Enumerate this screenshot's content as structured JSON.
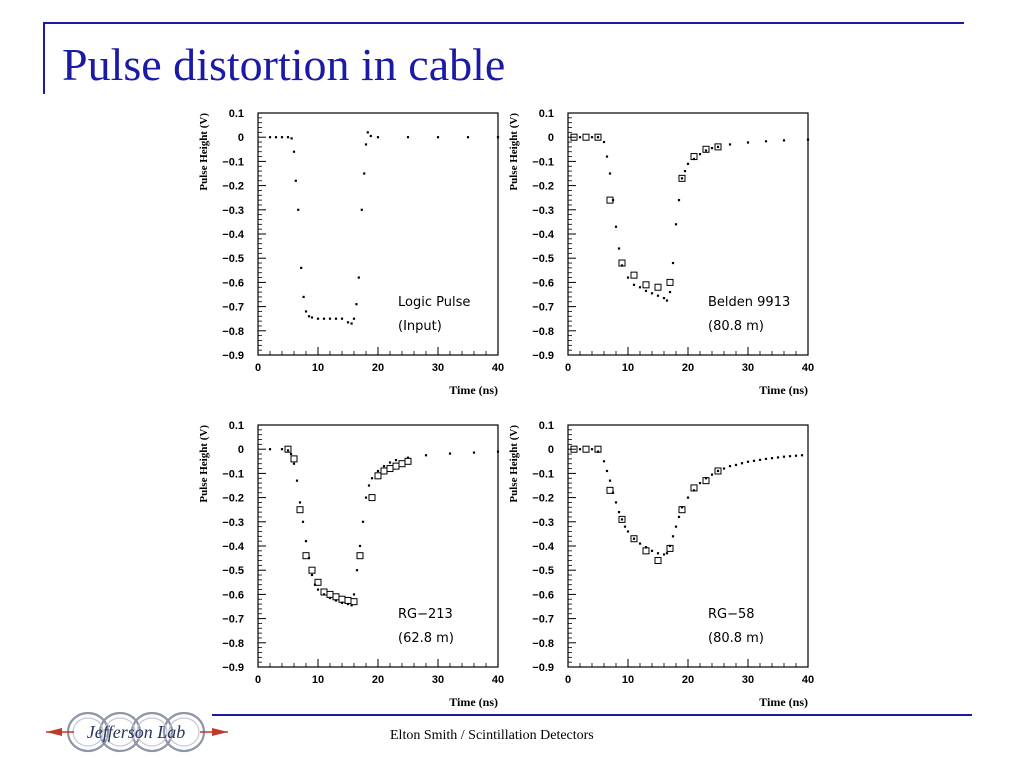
{
  "slide": {
    "title": "Pulse distortion in cable",
    "footer": "Elton Smith / Scintillation Detectors",
    "logo_text": "Jefferson Lab",
    "accent_color": "#1a1aa6"
  },
  "chart_data": [
    {
      "type": "scatter",
      "xlabel": "Time (ns)",
      "ylabel": "Pulse Height (V)",
      "xlim": [
        0,
        40
      ],
      "ylim": [
        -0.9,
        0.1
      ],
      "xticks": [
        "0",
        "10",
        "20",
        "30",
        "40"
      ],
      "yticks": [
        "0.1",
        "0",
        "-0.1",
        "-0.2",
        "-0.3",
        "-0.4",
        "-0.5",
        "-0.6",
        "-0.7",
        "-0.8",
        "-0.9"
      ],
      "annotation": [
        "Logic Pulse",
        "(Input)"
      ],
      "series": [
        {
          "marker": "dot",
          "points": [
            [
              2,
              0
            ],
            [
              3,
              0
            ],
            [
              4,
              0
            ],
            [
              5,
              0
            ],
            [
              5.6,
              -0.005
            ],
            [
              6,
              -0.06
            ],
            [
              6.3,
              -0.18
            ],
            [
              6.7,
              -0.3
            ],
            [
              7.2,
              -0.54
            ],
            [
              7.6,
              -0.66
            ],
            [
              8,
              -0.72
            ],
            [
              8.5,
              -0.74
            ],
            [
              9,
              -0.745
            ],
            [
              10,
              -0.75
            ],
            [
              11,
              -0.75
            ],
            [
              12,
              -0.75
            ],
            [
              13,
              -0.75
            ],
            [
              14,
              -0.75
            ],
            [
              15,
              -0.765
            ],
            [
              15.6,
              -0.77
            ],
            [
              16,
              -0.75
            ],
            [
              16.4,
              -0.69
            ],
            [
              16.8,
              -0.58
            ],
            [
              17.3,
              -0.3
            ],
            [
              17.7,
              -0.15
            ],
            [
              18,
              -0.03
            ],
            [
              18.3,
              0.02
            ],
            [
              18.8,
              0.005
            ],
            [
              20,
              0
            ],
            [
              25,
              0
            ],
            [
              30,
              0
            ],
            [
              35,
              0
            ],
            [
              40,
              0
            ]
          ]
        }
      ]
    },
    {
      "type": "scatter",
      "xlabel": "Time (ns)",
      "ylabel": "Pulse Height (V)",
      "xlim": [
        0,
        40
      ],
      "ylim": [
        -0.9,
        0.1
      ],
      "xticks": [
        "0",
        "10",
        "20",
        "30",
        "40"
      ],
      "yticks": [
        "0.1",
        "0",
        "-0.1",
        "-0.2",
        "-0.3",
        "-0.4",
        "-0.5",
        "-0.6",
        "-0.7",
        "-0.8",
        "-0.9"
      ],
      "annotation": [
        "Belden 9913",
        "(80.8 m)"
      ],
      "series": [
        {
          "marker": "dot",
          "points": [
            [
              2,
              0
            ],
            [
              4,
              0
            ],
            [
              5,
              0
            ],
            [
              6,
              -0.02
            ],
            [
              6.5,
              -0.08
            ],
            [
              7,
              -0.15
            ],
            [
              7.5,
              -0.26
            ],
            [
              8,
              -0.37
            ],
            [
              8.5,
              -0.46
            ],
            [
              9,
              -0.53
            ],
            [
              10,
              -0.58
            ],
            [
              11,
              -0.61
            ],
            [
              12,
              -0.62
            ],
            [
              13,
              -0.635
            ],
            [
              14,
              -0.645
            ],
            [
              15,
              -0.655
            ],
            [
              16,
              -0.665
            ],
            [
              16.5,
              -0.675
            ],
            [
              17,
              -0.64
            ],
            [
              17.5,
              -0.52
            ],
            [
              18,
              -0.36
            ],
            [
              18.5,
              -0.26
            ],
            [
              19,
              -0.17
            ],
            [
              19.5,
              -0.14
            ],
            [
              20,
              -0.11
            ],
            [
              21,
              -0.09
            ],
            [
              22,
              -0.07
            ],
            [
              23,
              -0.055
            ],
            [
              24,
              -0.045
            ],
            [
              25,
              -0.04
            ],
            [
              27,
              -0.03
            ],
            [
              30,
              -0.022
            ],
            [
              33,
              -0.017
            ],
            [
              36,
              -0.013
            ],
            [
              40,
              -0.01
            ]
          ]
        },
        {
          "marker": "square",
          "points": [
            [
              1,
              0
            ],
            [
              3,
              0
            ],
            [
              5,
              0
            ],
            [
              7,
              -0.26
            ],
            [
              9,
              -0.52
            ],
            [
              11,
              -0.57
            ],
            [
              13,
              -0.61
            ],
            [
              15,
              -0.62
            ],
            [
              17,
              -0.6
            ],
            [
              19,
              -0.17
            ],
            [
              21,
              -0.08
            ],
            [
              23,
              -0.05
            ],
            [
              25,
              -0.04
            ]
          ]
        }
      ]
    },
    {
      "type": "scatter",
      "xlabel": "Time (ns)",
      "ylabel": "Pulse Height (V)",
      "xlim": [
        0,
        40
      ],
      "ylim": [
        -0.9,
        0.1
      ],
      "xticks": [
        "0",
        "10",
        "20",
        "30",
        "40"
      ],
      "yticks": [
        "0.1",
        "0",
        "-0.1",
        "-0.2",
        "-0.3",
        "-0.4",
        "-0.5",
        "-0.6",
        "-0.7",
        "-0.8",
        "-0.9"
      ],
      "annotation": [
        "RG−213",
        "(62.8 m)"
      ],
      "series": [
        {
          "marker": "dot",
          "points": [
            [
              2,
              0
            ],
            [
              4,
              0
            ],
            [
              5,
              -0.005
            ],
            [
              5.5,
              -0.02
            ],
            [
              6,
              -0.06
            ],
            [
              6.5,
              -0.13
            ],
            [
              7,
              -0.22
            ],
            [
              7.5,
              -0.3
            ],
            [
              8,
              -0.38
            ],
            [
              8.5,
              -0.45
            ],
            [
              9,
              -0.52
            ],
            [
              9.5,
              -0.56
            ],
            [
              10,
              -0.58
            ],
            [
              11,
              -0.6
            ],
            [
              12,
              -0.615
            ],
            [
              13,
              -0.625
            ],
            [
              14,
              -0.635
            ],
            [
              15,
              -0.64
            ],
            [
              15.6,
              -0.645
            ],
            [
              16,
              -0.6
            ],
            [
              16.5,
              -0.5
            ],
            [
              17,
              -0.4
            ],
            [
              17.5,
              -0.3
            ],
            [
              18,
              -0.2
            ],
            [
              18.5,
              -0.15
            ],
            [
              19,
              -0.12
            ],
            [
              20,
              -0.09
            ],
            [
              21,
              -0.07
            ],
            [
              22,
              -0.055
            ],
            [
              23,
              -0.045
            ],
            [
              25,
              -0.035
            ],
            [
              28,
              -0.025
            ],
            [
              32,
              -0.018
            ],
            [
              36,
              -0.014
            ],
            [
              40,
              -0.01
            ]
          ]
        },
        {
          "marker": "square",
          "points": [
            [
              5,
              0
            ],
            [
              6,
              -0.04
            ],
            [
              7,
              -0.25
            ],
            [
              8,
              -0.44
            ],
            [
              9,
              -0.5
            ],
            [
              10,
              -0.55
            ],
            [
              11,
              -0.59
            ],
            [
              12,
              -0.6
            ],
            [
              13,
              -0.61
            ],
            [
              14,
              -0.62
            ],
            [
              15,
              -0.625
            ],
            [
              16,
              -0.63
            ],
            [
              17,
              -0.44
            ],
            [
              19,
              -0.2
            ],
            [
              20,
              -0.11
            ],
            [
              21,
              -0.09
            ],
            [
              22,
              -0.08
            ],
            [
              23,
              -0.07
            ],
            [
              24,
              -0.06
            ],
            [
              25,
              -0.05
            ]
          ]
        }
      ]
    },
    {
      "type": "scatter",
      "xlabel": "Time (ns)",
      "ylabel": "Pulse Height (V)",
      "xlim": [
        0,
        40
      ],
      "ylim": [
        -0.9,
        0.1
      ],
      "xticks": [
        "0",
        "10",
        "20",
        "30",
        "40"
      ],
      "yticks": [
        "0.1",
        "0",
        "-0.1",
        "-0.2",
        "-0.3",
        "-0.4",
        "-0.5",
        "-0.6",
        "-0.7",
        "-0.8",
        "-0.9"
      ],
      "annotation": [
        "RG−58",
        "(80.8 m)"
      ],
      "series": [
        {
          "marker": "dot",
          "points": [
            [
              2,
              0
            ],
            [
              4,
              0
            ],
            [
              5,
              -0.01
            ],
            [
              6,
              -0.05
            ],
            [
              6.5,
              -0.09
            ],
            [
              7,
              -0.13
            ],
            [
              7.5,
              -0.18
            ],
            [
              8,
              -0.22
            ],
            [
              8.5,
              -0.26
            ],
            [
              9,
              -0.29
            ],
            [
              9.5,
              -0.32
            ],
            [
              10,
              -0.34
            ],
            [
              11,
              -0.37
            ],
            [
              12,
              -0.39
            ],
            [
              13,
              -0.405
            ],
            [
              14,
              -0.42
            ],
            [
              15,
              -0.43
            ],
            [
              16,
              -0.435
            ],
            [
              16.5,
              -0.43
            ],
            [
              17,
              -0.4
            ],
            [
              17.5,
              -0.36
            ],
            [
              18,
              -0.32
            ],
            [
              18.5,
              -0.28
            ],
            [
              19,
              -0.24
            ],
            [
              20,
              -0.2
            ],
            [
              21,
              -0.17
            ],
            [
              22,
              -0.14
            ],
            [
              23,
              -0.12
            ],
            [
              24,
              -0.105
            ],
            [
              25,
              -0.09
            ],
            [
              26,
              -0.08
            ],
            [
              27,
              -0.07
            ],
            [
              28,
              -0.065
            ],
            [
              29,
              -0.058
            ],
            [
              30,
              -0.052
            ],
            [
              31,
              -0.048
            ],
            [
              32,
              -0.044
            ],
            [
              33,
              -0.04
            ],
            [
              34,
              -0.037
            ],
            [
              35,
              -0.034
            ],
            [
              36,
              -0.031
            ],
            [
              37,
              -0.029
            ],
            [
              38,
              -0.027
            ],
            [
              39,
              -0.025
            ]
          ]
        },
        {
          "marker": "square",
          "points": [
            [
              1,
              0
            ],
            [
              3,
              0
            ],
            [
              5,
              0
            ],
            [
              7,
              -0.17
            ],
            [
              9,
              -0.29
            ],
            [
              11,
              -0.37
            ],
            [
              13,
              -0.42
            ],
            [
              15,
              -0.46
            ],
            [
              17,
              -0.41
            ],
            [
              19,
              -0.25
            ],
            [
              21,
              -0.16
            ],
            [
              23,
              -0.13
            ],
            [
              25,
              -0.09
            ]
          ]
        }
      ]
    }
  ]
}
